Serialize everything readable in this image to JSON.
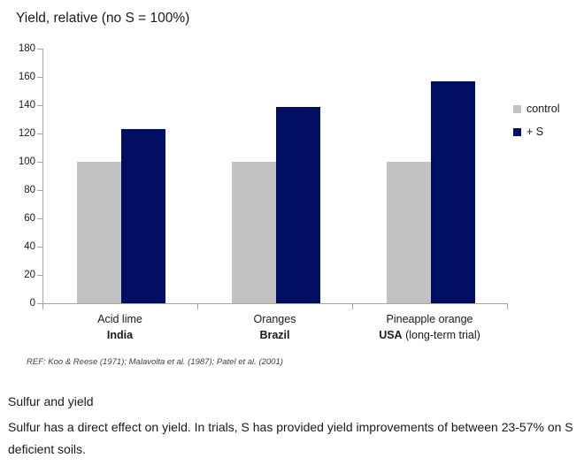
{
  "chart_data": {
    "type": "bar",
    "title": "Yield, relative (no S = 100%)",
    "categories": [
      {
        "line1": "Acid lime",
        "line2_bold": "India",
        "line2_rest": ""
      },
      {
        "line1": "Oranges",
        "line2_bold": "Brazil",
        "line2_rest": ""
      },
      {
        "line1": "Pineapple orange",
        "line2_bold": "USA",
        "line2_rest": " (long-term trial)"
      }
    ],
    "series": [
      {
        "name": "control",
        "color": "#c2c2c2",
        "values": [
          100,
          100,
          100
        ]
      },
      {
        "name": "+ S",
        "color": "#000e61",
        "values": [
          123,
          139,
          157
        ]
      }
    ],
    "ylim": [
      0,
      180
    ],
    "yticks": [
      0,
      20,
      40,
      60,
      80,
      100,
      120,
      140,
      160,
      180
    ],
    "grid": false,
    "legend_position": "right",
    "axis_color": "#a6a6a6"
  },
  "ref_note": "REF: Koo & Reese (1971); Malavolta et al. (1987); Patel et al. (2001)",
  "footer": {
    "heading": "Sulfur and yield",
    "body": "Sulfur has a direct effect on yield. In trials, S has provided yield improvements of between 23-57% on S deficient soils."
  }
}
